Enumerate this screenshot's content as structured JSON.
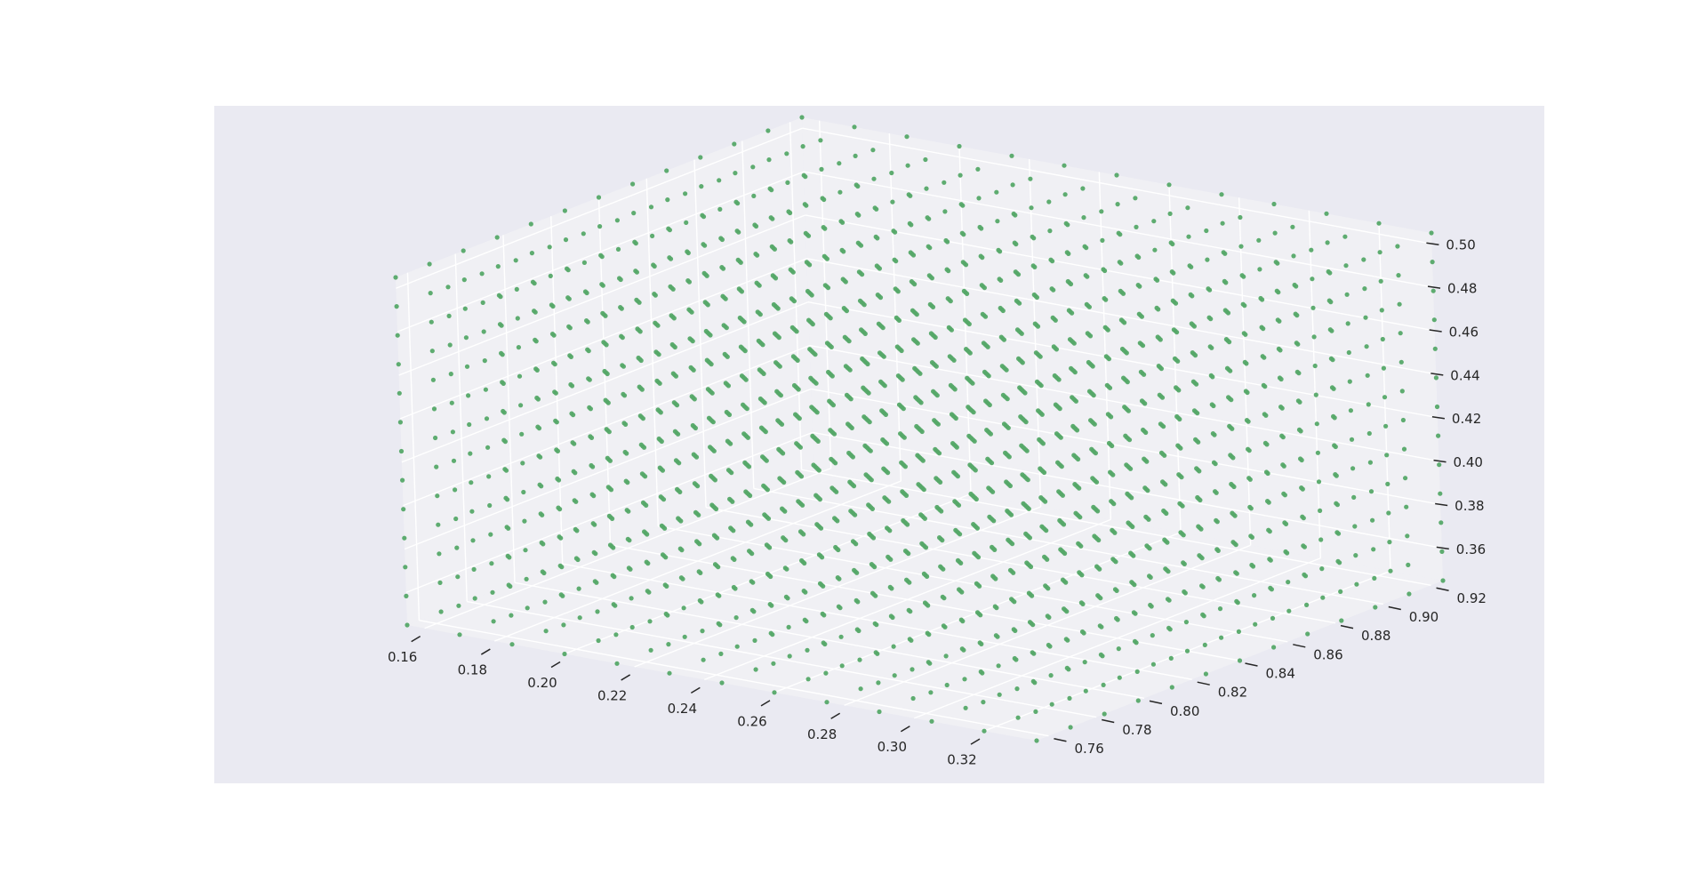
{
  "chart_data": {
    "type": "scatter",
    "projection": "3d",
    "title": "",
    "xlabel": "",
    "ylabel": "",
    "zlabel": "",
    "xlim": [
      0.155,
      0.335
    ],
    "ylim": [
      0.755,
      0.925
    ],
    "zlim": [
      0.345,
      0.505
    ],
    "xticks": [
      "0.16",
      "0.18",
      "0.20",
      "0.22",
      "0.24",
      "0.26",
      "0.28",
      "0.30",
      "0.32"
    ],
    "yticks": [
      "0.76",
      "0.78",
      "0.80",
      "0.82",
      "0.84",
      "0.86",
      "0.88",
      "0.90",
      "0.92"
    ],
    "zticks": [
      "0.36",
      "0.38",
      "0.40",
      "0.42",
      "0.44",
      "0.46",
      "0.48",
      "0.50"
    ],
    "series": [
      {
        "marker": "circle",
        "color": "#55a868",
        "grid": {
          "x": {
            "start": 0.155,
            "stop": 0.335,
            "count": 13
          },
          "y": {
            "start": 0.755,
            "stop": 0.925,
            "count": 13
          },
          "z": {
            "start": 0.345,
            "stop": 0.505,
            "count": 13
          }
        }
      }
    ],
    "grid": true,
    "colors": {
      "figure_background": "#ffffff",
      "axes_background": "#eaeaf2",
      "pane": "#f0f0f4",
      "grid_line": "#ffffff",
      "tick": "#262626",
      "point": "#55a868"
    }
  }
}
